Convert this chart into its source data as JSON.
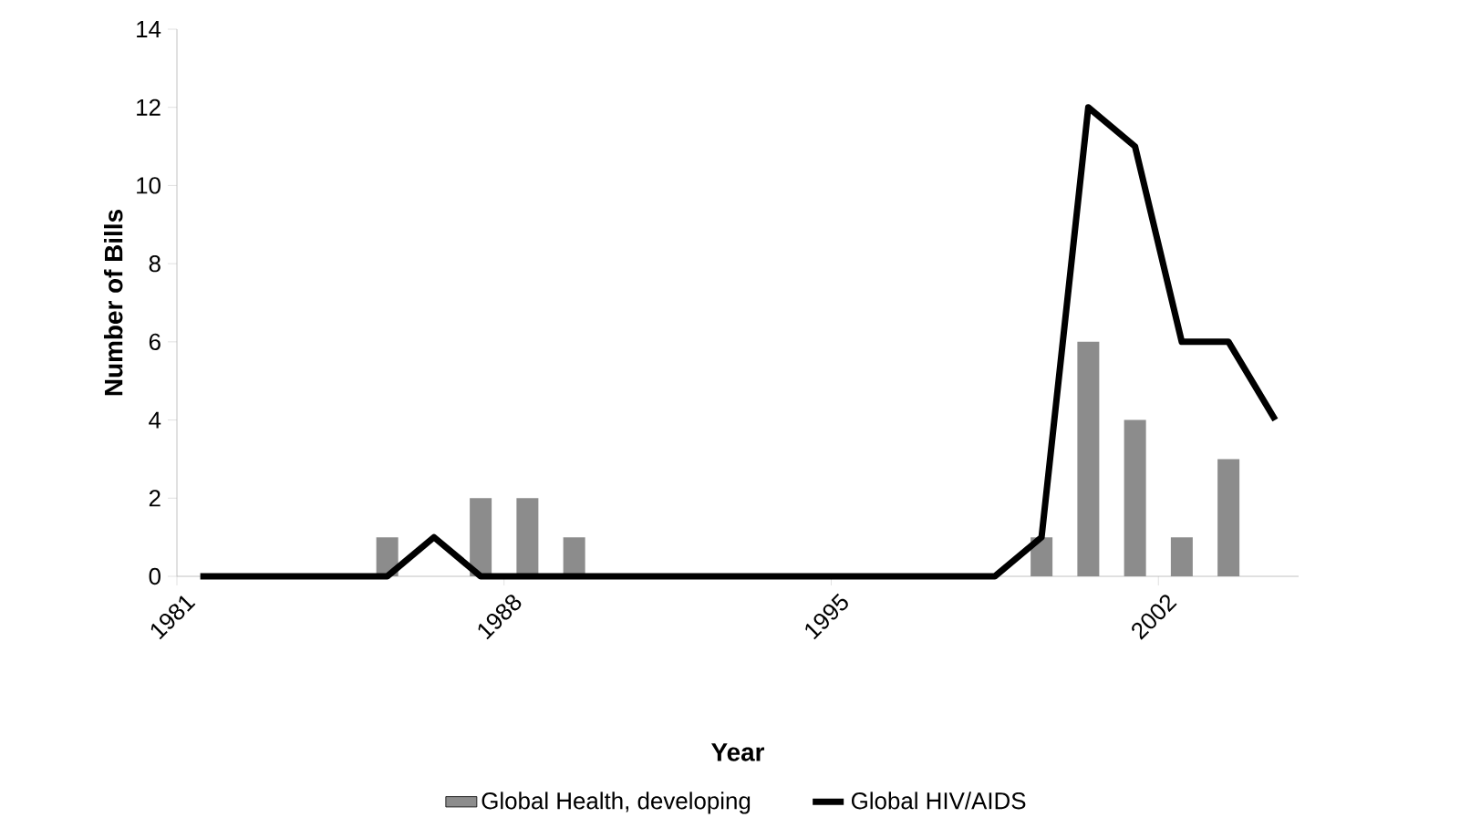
{
  "chart_data": {
    "type": "bar",
    "xlabel": "Year",
    "ylabel": "Number of Bills",
    "x": [
      1981,
      1982,
      1983,
      1984,
      1985,
      1986,
      1987,
      1988,
      1989,
      1990,
      1991,
      1992,
      1993,
      1994,
      1995,
      1996,
      1997,
      1998,
      1999,
      2000,
      2001,
      2002,
      2003,
      2004
    ],
    "series": [
      {
        "name": "Global Health, developing",
        "color": "#8c8c8c",
        "values": [
          0,
          0,
          0,
          0,
          1,
          0,
          2,
          2,
          1,
          0,
          0,
          0,
          0,
          0,
          0,
          0,
          0,
          0,
          1,
          6,
          4,
          1,
          3,
          0
        ]
      },
      {
        "name": "Global HIV/AIDS",
        "type": "line",
        "color": "#000000",
        "values": [
          0,
          0,
          0,
          0,
          0,
          1,
          0,
          0,
          0,
          0,
          0,
          0,
          0,
          0,
          0,
          0,
          0,
          0,
          1,
          12,
          11,
          6,
          6,
          4
        ]
      }
    ],
    "xlim": [
      1980.5,
      2004.5
    ],
    "xticks": [
      {
        "value": 1980.5,
        "label": "1981"
      },
      {
        "value": 1987.5,
        "label": "1988"
      },
      {
        "value": 1994.5,
        "label": "1995"
      },
      {
        "value": 2001.5,
        "label": "2002"
      }
    ],
    "ylim": [
      0,
      14
    ],
    "yticks": [
      0,
      2,
      4,
      6,
      8,
      10,
      12,
      14
    ],
    "legend": "bottom",
    "marker": "none",
    "line_style": "solid",
    "grid": false
  }
}
